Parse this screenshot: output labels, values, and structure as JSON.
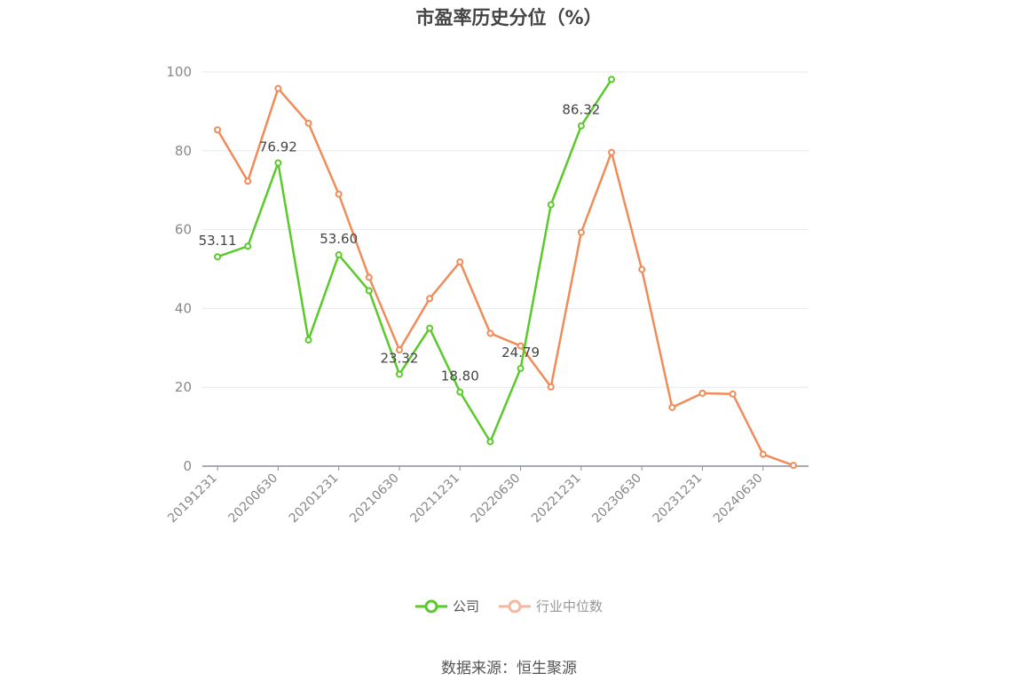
{
  "title": "市盈率历史分位（%）",
  "source": "数据来源：恒生聚源",
  "colors": {
    "company": "#5ac92a",
    "industry": "#f08c5a",
    "industry_legend": "#f4b8a0",
    "axis": "#8a8f9c",
    "grid": "#e6e8ee",
    "label": "#444444",
    "tick_label": "#888888"
  },
  "legend": [
    {
      "name": "公司",
      "color": "#5ac92a",
      "icon": "circle-line-icon"
    },
    {
      "name": "行业中位数",
      "color": "#f4b8a0",
      "icon": "circle-line-icon"
    }
  ],
  "chart_data": {
    "type": "line",
    "title": "市盈率历史分位（%）",
    "x": [
      "20191231",
      "20200331",
      "20200630",
      "20200930",
      "20201231",
      "20210331",
      "20210630",
      "20210930",
      "20211231",
      "20220331",
      "20220630",
      "20220930",
      "20221231",
      "20230331",
      "20230630",
      "20230930",
      "20231231",
      "20240331",
      "20240630",
      "20240930"
    ],
    "x_tick_labels": [
      "20191231",
      "20200630",
      "20201231",
      "20210630",
      "20211231",
      "20220630",
      "20221231",
      "20230630",
      "20231231",
      "20240630"
    ],
    "ylim": [
      0,
      100
    ],
    "y_ticks": [
      0,
      20,
      40,
      60,
      80,
      100
    ],
    "grid": true,
    "legend_position": "bottom",
    "series": [
      {
        "name": "公司",
        "values": [
          53.11,
          55.8,
          76.92,
          32.0,
          53.6,
          44.5,
          23.32,
          35.0,
          18.8,
          6.2,
          24.79,
          66.3,
          86.32,
          98.1,
          null,
          null,
          null,
          null,
          null,
          null
        ]
      },
      {
        "name": "行业中位数",
        "values": [
          85.3,
          72.3,
          95.8,
          87.0,
          69.0,
          47.9,
          29.5,
          42.5,
          51.8,
          33.7,
          30.5,
          20.1,
          59.3,
          79.6,
          49.9,
          14.9,
          18.5,
          18.3,
          3.0,
          0.2
        ]
      }
    ],
    "data_labels": [
      {
        "series": "公司",
        "x": "20191231",
        "text": "53.11"
      },
      {
        "series": "公司",
        "x": "20200630",
        "text": "76.92"
      },
      {
        "series": "公司",
        "x": "20201231",
        "text": "53.60"
      },
      {
        "series": "公司",
        "x": "20210630",
        "text": "23.32"
      },
      {
        "series": "公司",
        "x": "20211231",
        "text": "18.80"
      },
      {
        "series": "公司",
        "x": "20220630",
        "text": "24.79"
      },
      {
        "series": "公司",
        "x": "20221231",
        "text": "86.32"
      }
    ]
  }
}
